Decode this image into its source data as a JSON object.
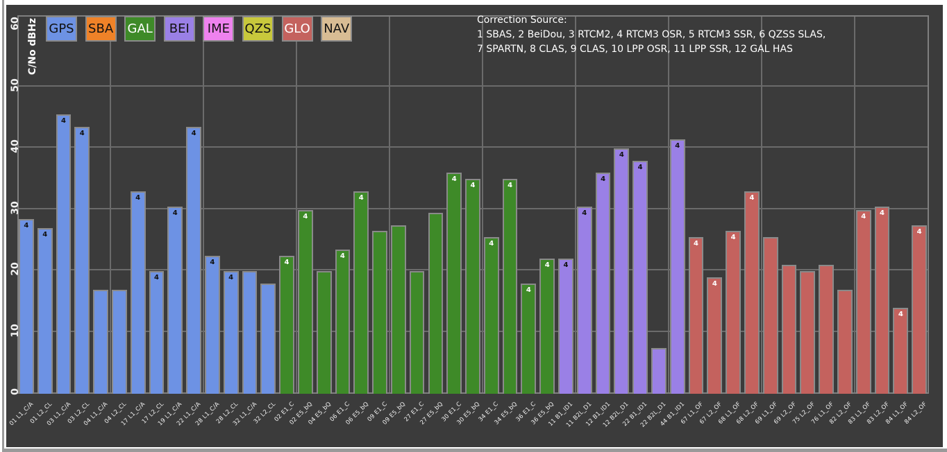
{
  "chart_data": {
    "type": "bar",
    "title": "",
    "ylabel": "C/No dBHz",
    "ylim": [
      0,
      60
    ],
    "yticks": [
      0,
      10,
      20,
      30,
      40,
      50,
      60
    ],
    "grid": "on",
    "legend_position": "top-left",
    "background_color": "#3b3b3b",
    "grid_color": "#6b6b6b",
    "frame_color": "#7f7f7f",
    "bar_border_color": "#8a8a8a",
    "text_color": "#ffffff",
    "note_lines": [
      "Correction Source:",
      "1 SBAS, 2 BeiDou, 3 RTCM2, 4 RTCM3 OSR, 5 RTCM3 SSR, 6 QZSS SLAS,",
      "7 SPARTN, 8 CLAS, 9 CLAS, 10 LPP OSR, 11 LPP SSR, 12 GAL HAS"
    ],
    "legend": [
      {
        "label": "GPS",
        "color": "#6d92e4",
        "text_color": "#111111"
      },
      {
        "label": "SBA",
        "color": "#ef8228",
        "text_color": "#111111"
      },
      {
        "label": "GAL",
        "color": "#3e8a28",
        "text_color": "#ffffff"
      },
      {
        "label": "BEI",
        "color": "#9a80e6",
        "text_color": "#111111"
      },
      {
        "label": "IME",
        "color": "#ee82ee",
        "text_color": "#111111"
      },
      {
        "label": "QZS",
        "color": "#c8c83c",
        "text_color": "#111111"
      },
      {
        "label": "GLO",
        "color": "#c4625e",
        "text_color": "#ffffff"
      },
      {
        "label": "NAV",
        "color": "#d8bc94",
        "text_color": "#111111"
      }
    ],
    "groups": {
      "GPS": {
        "bar_color": "#6d92e4",
        "value_label_color": "#111111"
      },
      "GAL": {
        "bar_color": "#3e8a28",
        "value_label_color": "#ffffff"
      },
      "BEI": {
        "bar_color": "#9a80e6",
        "value_label_color": "#111111"
      },
      "GLO": {
        "bar_color": "#c4625e",
        "value_label_color": "#ffffff"
      }
    },
    "bars": [
      {
        "category": "01 L1_C/A",
        "group": "GPS",
        "value": 28.5,
        "corr": "4"
      },
      {
        "category": "01 L2_CL",
        "group": "GPS",
        "value": 27.0,
        "corr": "4"
      },
      {
        "category": "03 L1_C/A",
        "group": "GPS",
        "value": 45.5,
        "corr": "4"
      },
      {
        "category": "03 L2_CL",
        "group": "GPS",
        "value": 43.5,
        "corr": "4"
      },
      {
        "category": "04 L1_C/A",
        "group": "GPS",
        "value": 17.0,
        "corr": ""
      },
      {
        "category": "04 L2_CL",
        "group": "GPS",
        "value": 17.0,
        "corr": ""
      },
      {
        "category": "17 L1_C/A",
        "group": "GPS",
        "value": 33.0,
        "corr": "4"
      },
      {
        "category": "17 L2_CL",
        "group": "GPS",
        "value": 20.0,
        "corr": "4"
      },
      {
        "category": "19 L1_C/A",
        "group": "GPS",
        "value": 30.5,
        "corr": "4"
      },
      {
        "category": "22 L1_C/A",
        "group": "GPS",
        "value": 43.5,
        "corr": "4"
      },
      {
        "category": "28 L1_C/A",
        "group": "GPS",
        "value": 22.5,
        "corr": "4"
      },
      {
        "category": "28 L2_CL",
        "group": "GPS",
        "value": 20.0,
        "corr": "4"
      },
      {
        "category": "32 L1_C/A",
        "group": "GPS",
        "value": 20.0,
        "corr": ""
      },
      {
        "category": "32 L2_CL",
        "group": "GPS",
        "value": 18.0,
        "corr": ""
      },
      {
        "category": "02 E1_C",
        "group": "GAL",
        "value": 22.5,
        "corr": "4"
      },
      {
        "category": "02 E5_bQ",
        "group": "GAL",
        "value": 30.0,
        "corr": "4"
      },
      {
        "category": "04 E5_bQ",
        "group": "GAL",
        "value": 20.0,
        "corr": ""
      },
      {
        "category": "06 E1_C",
        "group": "GAL",
        "value": 23.5,
        "corr": "4"
      },
      {
        "category": "06 E5_bQ",
        "group": "GAL",
        "value": 33.0,
        "corr": "4"
      },
      {
        "category": "09 E1_C",
        "group": "GAL",
        "value": 26.5,
        "corr": ""
      },
      {
        "category": "09 E5_bQ",
        "group": "GAL",
        "value": 27.5,
        "corr": ""
      },
      {
        "category": "27 E1_C",
        "group": "GAL",
        "value": 20.0,
        "corr": ""
      },
      {
        "category": "27 E5_bQ",
        "group": "GAL",
        "value": 29.5,
        "corr": ""
      },
      {
        "category": "30 E1_C",
        "group": "GAL",
        "value": 36.0,
        "corr": "4"
      },
      {
        "category": "30 E5_bQ",
        "group": "GAL",
        "value": 35.0,
        "corr": "4"
      },
      {
        "category": "34 E1_C",
        "group": "GAL",
        "value": 25.5,
        "corr": "4"
      },
      {
        "category": "34 E5_bQ",
        "group": "GAL",
        "value": 35.0,
        "corr": "4"
      },
      {
        "category": "36 E1_C",
        "group": "GAL",
        "value": 18.0,
        "corr": "4"
      },
      {
        "category": "36 E5_bQ",
        "group": "GAL",
        "value": 22.0,
        "corr": "4"
      },
      {
        "category": "11 B1_ID1",
        "group": "BEI",
        "value": 22.0,
        "corr": "4"
      },
      {
        "category": "11 B2L_D1",
        "group": "BEI",
        "value": 30.5,
        "corr": "4"
      },
      {
        "category": "12 B1_ID1",
        "group": "BEI",
        "value": 36.0,
        "corr": "4"
      },
      {
        "category": "12 B2L_D1",
        "group": "BEI",
        "value": 40.0,
        "corr": "4"
      },
      {
        "category": "22 B1_ID1",
        "group": "BEI",
        "value": 38.0,
        "corr": "4"
      },
      {
        "category": "22 B2L_D1",
        "group": "BEI",
        "value": 7.5,
        "corr": ""
      },
      {
        "category": "44 B1_ID1",
        "group": "BEI",
        "value": 41.5,
        "corr": "4"
      },
      {
        "category": "67 L1_OF",
        "group": "GLO",
        "value": 25.5,
        "corr": "4"
      },
      {
        "category": "67 L2_OF",
        "group": "GLO",
        "value": 19.0,
        "corr": "4"
      },
      {
        "category": "68 L1_OF",
        "group": "GLO",
        "value": 26.5,
        "corr": "4"
      },
      {
        "category": "68 L2_OF",
        "group": "GLO",
        "value": 33.0,
        "corr": "4"
      },
      {
        "category": "69 L1_OF",
        "group": "GLO",
        "value": 25.5,
        "corr": ""
      },
      {
        "category": "69 L2_OF",
        "group": "GLO",
        "value": 21.0,
        "corr": ""
      },
      {
        "category": "75 L2_OF",
        "group": "GLO",
        "value": 20.0,
        "corr": ""
      },
      {
        "category": "76 L1_OF",
        "group": "GLO",
        "value": 21.0,
        "corr": ""
      },
      {
        "category": "82 L2_OF",
        "group": "GLO",
        "value": 17.0,
        "corr": ""
      },
      {
        "category": "83 L1_OF",
        "group": "GLO",
        "value": 30.0,
        "corr": "4"
      },
      {
        "category": "83 L2_OF",
        "group": "GLO",
        "value": 30.5,
        "corr": "4"
      },
      {
        "category": "84 L1_OF",
        "group": "GLO",
        "value": 14.0,
        "corr": "4"
      },
      {
        "category": "84 L2_OF",
        "group": "GLO",
        "value": 27.5,
        "corr": "4"
      }
    ]
  }
}
